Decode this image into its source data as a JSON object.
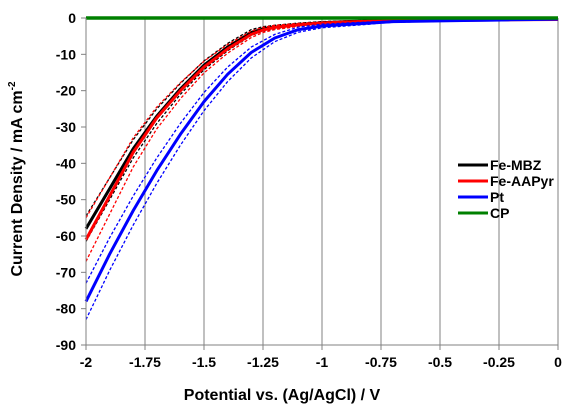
{
  "chart_data": {
    "type": "line",
    "xlabel": "Potential vs. (Ag/AgCl) / V",
    "ylabel": "Current Density / mA cm",
    "ylabel_sup": "-2",
    "xlim": [
      -2,
      0
    ],
    "ylim": [
      -90,
      0
    ],
    "x_ticks": [
      -2,
      -1.75,
      -1.5,
      -1.25,
      -1,
      -0.75,
      -0.5,
      -0.25,
      0
    ],
    "x_tick_labels": [
      "-2",
      "-1.75",
      "-1.5",
      "-1.25",
      "-1",
      "-0.75",
      "-0.5",
      "-0.25",
      "0"
    ],
    "y_ticks": [
      0,
      -10,
      -20,
      -30,
      -40,
      -50,
      -60,
      -70,
      -80,
      -90
    ],
    "y_tick_labels": [
      "0",
      "-10",
      "-20",
      "-30",
      "-40",
      "-50",
      "-60",
      "-70",
      "-80",
      "-90"
    ],
    "grid": {
      "vertical": true,
      "horizontal": false
    },
    "legend_position": "right",
    "series": [
      {
        "name": "Fe-MBZ",
        "color": "#000000",
        "x": [
          -2.0,
          -1.9,
          -1.8,
          -1.7,
          -1.6,
          -1.5,
          -1.4,
          -1.3,
          -1.25,
          -1.2,
          -1.1,
          -1.0,
          -0.9,
          -0.8,
          -0.7,
          -0.6,
          -0.5,
          -0.4,
          -0.3,
          -0.2,
          -0.1,
          0.0
        ],
        "y": [
          -58,
          -47,
          -36,
          -27,
          -19.5,
          -13,
          -8,
          -4,
          -3,
          -2.5,
          -1.8,
          -1.3,
          -1.0,
          -0.8,
          -0.7,
          -0.6,
          -0.55,
          -0.5,
          -0.45,
          -0.4,
          -0.35,
          -0.3
        ],
        "band": [
          3.5,
          3.0,
          2.5,
          2.0,
          1.5,
          1.2,
          1.0,
          0.8,
          0.6,
          0.5,
          0.4,
          0.3,
          0.2,
          0.2,
          0.15,
          0.1,
          0.1,
          0.1,
          0.1,
          0.1,
          0.1,
          0.1
        ]
      },
      {
        "name": "Fe-AAPyr",
        "color": "#ff0000",
        "x": [
          -2.0,
          -1.9,
          -1.8,
          -1.7,
          -1.6,
          -1.5,
          -1.4,
          -1.3,
          -1.25,
          -1.2,
          -1.1,
          -1.0,
          -0.9,
          -0.8,
          -0.7,
          -0.6,
          -0.5,
          -0.4,
          -0.3,
          -0.2,
          -0.1,
          0.0
        ],
        "y": [
          -61,
          -49,
          -37,
          -27.5,
          -20,
          -13.5,
          -8.5,
          -4.5,
          -3.3,
          -2.6,
          -1.9,
          -1.4,
          -1.1,
          -0.9,
          -0.8,
          -0.7,
          -0.65,
          -0.6,
          -0.55,
          -0.5,
          -0.45,
          -0.4
        ],
        "band": [
          6.0,
          5.0,
          4.0,
          3.0,
          2.2,
          1.6,
          1.2,
          0.9,
          0.7,
          0.6,
          0.4,
          0.3,
          0.2,
          0.2,
          0.15,
          0.1,
          0.1,
          0.1,
          0.1,
          0.1,
          0.1,
          0.1
        ]
      },
      {
        "name": "Pt",
        "color": "#0000ff",
        "x": [
          -2.0,
          -1.9,
          -1.8,
          -1.7,
          -1.6,
          -1.5,
          -1.4,
          -1.3,
          -1.2,
          -1.1,
          -1.0,
          -0.9,
          -0.8,
          -0.75,
          -0.7,
          -0.6,
          -0.5,
          -0.4,
          -0.3,
          -0.2,
          -0.1,
          0.0
        ],
        "y": [
          -78,
          -65,
          -53,
          -42,
          -32,
          -23,
          -15.5,
          -9.5,
          -5.5,
          -3.2,
          -2.2,
          -1.8,
          -1.4,
          -1.2,
          -1.0,
          -0.9,
          -0.8,
          -0.7,
          -0.6,
          -0.5,
          -0.4,
          -0.3
        ],
        "band": [
          5.0,
          4.5,
          4.0,
          3.5,
          3.0,
          2.5,
          2.0,
          1.5,
          1.0,
          0.7,
          0.5,
          0.4,
          0.3,
          0.2,
          0.2,
          0.15,
          0.1,
          0.1,
          0.1,
          0.1,
          0.1,
          0.1
        ]
      },
      {
        "name": "CP",
        "color": "#008000",
        "x": [
          -2.0,
          -1.5,
          -1.0,
          -0.5,
          0.0
        ],
        "y": [
          0,
          0,
          0,
          0,
          0
        ],
        "band": [
          0,
          0,
          0,
          0,
          0
        ]
      }
    ]
  }
}
